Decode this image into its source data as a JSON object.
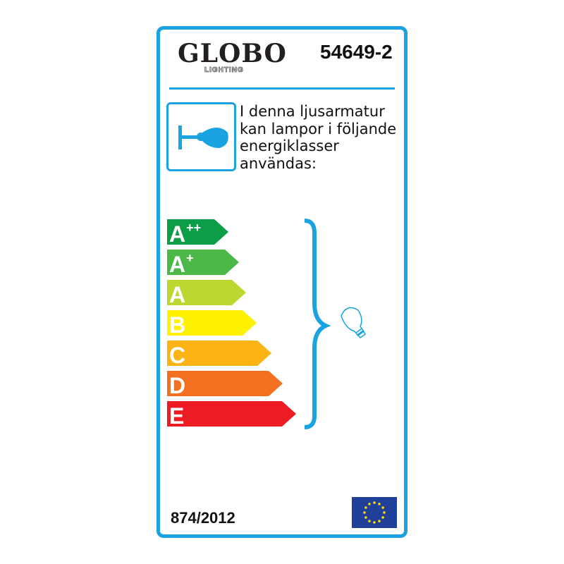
{
  "brand": {
    "name": "GLOBO",
    "sub": "LIGHTING"
  },
  "model_number": "54649-2",
  "description_lines": [
    "I denna ljusarmatur",
    "kan lampor i följande",
    "energiklasser",
    "användas:"
  ],
  "energy_classes": [
    {
      "letter": "A",
      "sup": "++",
      "color": "#0b9e46"
    },
    {
      "letter": "A",
      "sup": "+",
      "color": "#4cb848"
    },
    {
      "letter": "A",
      "sup": "",
      "color": "#bdd630"
    },
    {
      "letter": "B",
      "sup": "",
      "color": "#fff200"
    },
    {
      "letter": "C",
      "sup": "",
      "color": "#fbb414"
    },
    {
      "letter": "D",
      "sup": "",
      "color": "#f37021"
    },
    {
      "letter": "E",
      "sup": "",
      "color": "#ed1c24"
    }
  ],
  "regulation": "874/2012",
  "accent_color": "#1aa3e0",
  "icons": [
    "wall-lamp-icon",
    "light-bulb-icon",
    "eu-flag-icon"
  ]
}
